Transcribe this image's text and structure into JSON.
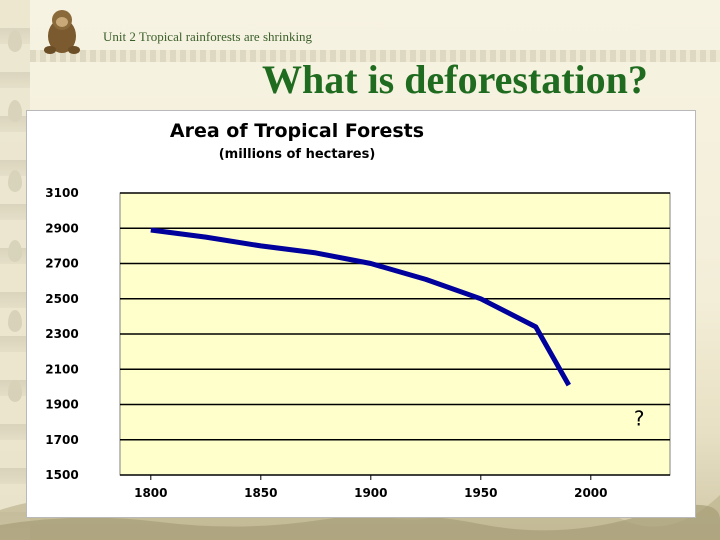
{
  "slide": {
    "unit_label": "Unit 2  Tropical rainforests are shrinking",
    "title": "What is deforestation?"
  },
  "chart_data": {
    "type": "line",
    "title": "Area of Tropical Forests",
    "subtitle": "(millions of hectares)",
    "xlabel": "",
    "ylabel": "",
    "x": [
      1800,
      1825,
      1850,
      1875,
      1900,
      1925,
      1950,
      1975,
      1990
    ],
    "series": [
      {
        "values": [
          2890,
          2850,
          2800,
          2760,
          2700,
          2610,
          2500,
          2340,
          2010
        ]
      }
    ],
    "x_ticks": [
      "1800",
      "1850",
      "1900",
      "1950",
      "2000"
    ],
    "x_tick_values": [
      1800,
      1850,
      1900,
      1950,
      2000
    ],
    "y_ticks": [
      "3100",
      "2900",
      "2700",
      "2500",
      "2300",
      "2100",
      "1900",
      "1700",
      "1500"
    ],
    "y_tick_values": [
      3100,
      2900,
      2700,
      2500,
      2300,
      2100,
      1900,
      1700,
      1500
    ],
    "xlim": [
      1786,
      2036
    ],
    "ylim": [
      1500,
      3100
    ],
    "grid": true,
    "annotation": {
      "text": "?",
      "x": 2022,
      "y": 1780
    },
    "colors": {
      "plot_bg": "#ffffcc",
      "line": "#00009c",
      "grid": "#000000"
    }
  }
}
